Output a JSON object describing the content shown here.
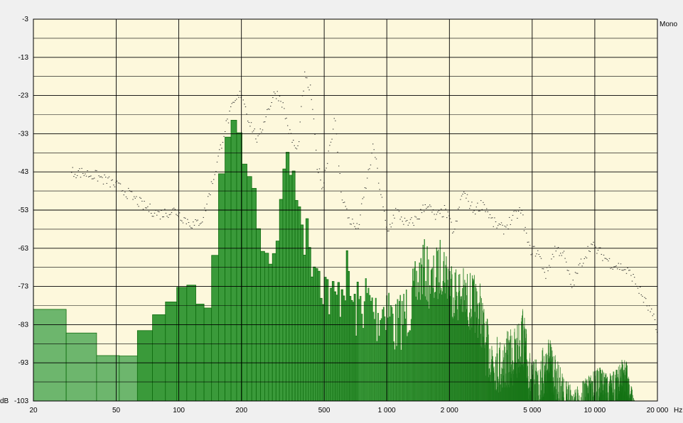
{
  "chart_data": {
    "type": "bar",
    "channel_label": "Mono",
    "x_unit": "Hz",
    "y_unit": "dB",
    "x_scale": "log",
    "x_range": [
      20,
      20000
    ],
    "y_range": [
      -103,
      -3
    ],
    "x_ticks": [
      {
        "value": 20,
        "label": "20"
      },
      {
        "value": 50,
        "label": "50"
      },
      {
        "value": 100,
        "label": "100"
      },
      {
        "value": 200,
        "label": "200"
      },
      {
        "value": 500,
        "label": "500"
      },
      {
        "value": 1000,
        "label": "1 000"
      },
      {
        "value": 2000,
        "label": "2 000"
      },
      {
        "value": 5000,
        "label": "5 000"
      },
      {
        "value": 10000,
        "label": "10 000"
      },
      {
        "value": 20000,
        "label": "20 000"
      }
    ],
    "y_ticks": [
      -3,
      -13,
      -23,
      -33,
      -43,
      -53,
      -63,
      -73,
      -83,
      -93,
      -103
    ],
    "grid": true,
    "colors": {
      "plot_background": "#fdf8dc",
      "bar_fill": "#3a9a3a",
      "bar_stroke": "#0f6d0f",
      "low_bar_fill": "#6db66d",
      "peak_dots": "#333333",
      "grid": "#000000"
    },
    "spectrum_control_points": [
      [
        20,
        -73
      ],
      [
        22,
        -79
      ],
      [
        29,
        -79
      ],
      [
        31,
        -81
      ],
      [
        40,
        -91
      ],
      [
        44,
        -86
      ],
      [
        48,
        -96
      ],
      [
        54,
        -93
      ],
      [
        60,
        -90
      ],
      [
        70,
        -84
      ],
      [
        85,
        -79
      ],
      [
        100,
        -75
      ],
      [
        106,
        -72
      ],
      [
        120,
        -73
      ],
      [
        130,
        -80
      ],
      [
        142,
        -78
      ],
      [
        150,
        -64
      ],
      [
        158,
        -50
      ],
      [
        165,
        -35
      ],
      [
        175,
        -25
      ],
      [
        190,
        -29
      ],
      [
        210,
        -37
      ],
      [
        230,
        -45
      ],
      [
        250,
        -58
      ],
      [
        280,
        -63
      ],
      [
        300,
        -55
      ],
      [
        318,
        -44
      ],
      [
        330,
        -31
      ],
      [
        345,
        -39
      ],
      [
        380,
        -49
      ],
      [
        420,
        -54
      ],
      [
        460,
        -58
      ],
      [
        500,
        -64
      ],
      [
        560,
        -70
      ],
      [
        640,
        -62
      ],
      [
        700,
        -72
      ],
      [
        800,
        -68
      ],
      [
        900,
        -73
      ],
      [
        1000,
        -69
      ],
      [
        1100,
        -76
      ],
      [
        1300,
        -70
      ],
      [
        1500,
        -60
      ],
      [
        1650,
        -65
      ],
      [
        1850,
        -59
      ],
      [
        2100,
        -66
      ],
      [
        2500,
        -69
      ],
      [
        2800,
        -71
      ],
      [
        3000,
        -81
      ],
      [
        3500,
        -86
      ],
      [
        4200,
        -83
      ],
      [
        4500,
        -78
      ],
      [
        5000,
        -93
      ],
      [
        5500,
        -90
      ],
      [
        6000,
        -85
      ],
      [
        6500,
        -91
      ],
      [
        7200,
        -97
      ],
      [
        8000,
        -100
      ],
      [
        9000,
        -97
      ],
      [
        10500,
        -94
      ],
      [
        12000,
        -96
      ],
      [
        14000,
        -91
      ],
      [
        15500,
        -103
      ]
    ],
    "peak_hold_control_points": [
      [
        28,
        -43
      ],
      [
        33,
        -43
      ],
      [
        40,
        -44
      ],
      [
        48,
        -46
      ],
      [
        55,
        -48
      ],
      [
        68,
        -52
      ],
      [
        80,
        -54
      ],
      [
        95,
        -53
      ],
      [
        105,
        -55
      ],
      [
        118,
        -57
      ],
      [
        130,
        -55
      ],
      [
        150,
        -42
      ],
      [
        165,
        -32
      ],
      [
        180,
        -26
      ],
      [
        200,
        -22
      ],
      [
        215,
        -29
      ],
      [
        240,
        -35
      ],
      [
        260,
        -28
      ],
      [
        290,
        -22
      ],
      [
        310,
        -24
      ],
      [
        340,
        -33
      ],
      [
        370,
        -38
      ],
      [
        400,
        -18
      ],
      [
        430,
        -22
      ],
      [
        460,
        -41
      ],
      [
        490,
        -47
      ],
      [
        520,
        -38
      ],
      [
        560,
        -29
      ],
      [
        600,
        -48
      ],
      [
        650,
        -55
      ],
      [
        720,
        -58
      ],
      [
        800,
        -45
      ],
      [
        860,
        -36
      ],
      [
        920,
        -47
      ],
      [
        1000,
        -59
      ],
      [
        1100,
        -53
      ],
      [
        1250,
        -57
      ],
      [
        1400,
        -55
      ],
      [
        1550,
        -51
      ],
      [
        1700,
        -55
      ],
      [
        1900,
        -53
      ],
      [
        2100,
        -59
      ],
      [
        2300,
        -48
      ],
      [
        2600,
        -53
      ],
      [
        2900,
        -51
      ],
      [
        3200,
        -56
      ],
      [
        3600,
        -58
      ],
      [
        4000,
        -55
      ],
      [
        4400,
        -53
      ],
      [
        4800,
        -63
      ],
      [
        5300,
        -64
      ],
      [
        5800,
        -70
      ],
      [
        6400,
        -63
      ],
      [
        7000,
        -64
      ],
      [
        7700,
        -73
      ],
      [
        8500,
        -67
      ],
      [
        9500,
        -62
      ],
      [
        10500,
        -64
      ],
      [
        12000,
        -67
      ],
      [
        13500,
        -68
      ],
      [
        15000,
        -70
      ],
      [
        17000,
        -76
      ],
      [
        19000,
        -81
      ],
      [
        20000,
        -86
      ]
    ]
  }
}
